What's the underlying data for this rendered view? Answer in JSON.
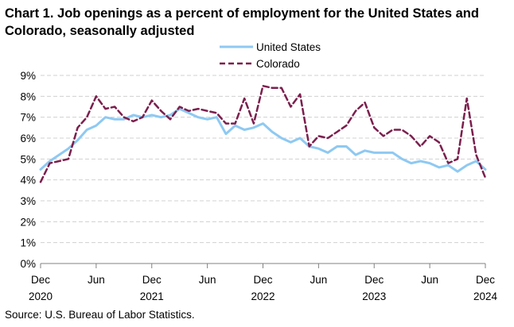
{
  "chart_data": {
    "type": "line",
    "title": "Chart 1. Job openings as a percent of employment for the United States and Colorado, seasonally adjusted",
    "source": "Source: U.S. Bureau of Labor Statistics.",
    "y_tick_labels": [
      "0%",
      "1%",
      "2%",
      "3%",
      "4%",
      "5%",
      "6%",
      "7%",
      "8%",
      "9%"
    ],
    "ylim": [
      0,
      9
    ],
    "x_tick_labels": [
      {
        "index": 0,
        "month": "Dec",
        "year": "2020"
      },
      {
        "index": 6,
        "month": "Jun",
        "year": ""
      },
      {
        "index": 12,
        "month": "Dec",
        "year": "2021"
      },
      {
        "index": 18,
        "month": "Jun",
        "year": ""
      },
      {
        "index": 24,
        "month": "Dec",
        "year": "2022"
      },
      {
        "index": 30,
        "month": "Jun",
        "year": ""
      },
      {
        "index": 36,
        "month": "Dec",
        "year": "2023"
      },
      {
        "index": 42,
        "month": "Jun",
        "year": ""
      },
      {
        "index": 48,
        "month": "Dec",
        "year": "2024"
      }
    ],
    "grid": true,
    "legend_position": "top-center",
    "series": [
      {
        "name": "United States",
        "color": "#8ec9f2",
        "style": "solid",
        "values": [
          4.5,
          4.9,
          5.2,
          5.5,
          5.9,
          6.4,
          6.6,
          7.0,
          6.9,
          6.9,
          7.1,
          7.0,
          7.1,
          7.0,
          7.1,
          7.4,
          7.2,
          7.0,
          6.9,
          7.0,
          6.2,
          6.6,
          6.4,
          6.5,
          6.7,
          6.3,
          6.0,
          5.8,
          6.0,
          5.6,
          5.5,
          5.3,
          5.6,
          5.6,
          5.2,
          5.4,
          5.3,
          5.3,
          5.3,
          5.0,
          4.8,
          4.9,
          4.8,
          4.6,
          4.7,
          4.4,
          4.7,
          4.9,
          4.5
        ]
      },
      {
        "name": "Colorado",
        "color": "#7b1f4d",
        "style": "dashed",
        "values": [
          3.9,
          4.8,
          4.9,
          5.0,
          6.5,
          7.0,
          8.0,
          7.4,
          7.5,
          7.0,
          6.8,
          7.0,
          7.8,
          7.3,
          6.9,
          7.5,
          7.3,
          7.4,
          7.3,
          7.2,
          6.7,
          6.7,
          7.9,
          6.7,
          8.5,
          8.4,
          8.4,
          7.5,
          8.1,
          5.6,
          6.1,
          6.0,
          6.3,
          6.6,
          7.3,
          7.7,
          6.5,
          6.1,
          6.4,
          6.4,
          6.1,
          5.6,
          6.1,
          5.8,
          4.8,
          5.0,
          7.9,
          5.2,
          4.1
        ]
      }
    ]
  }
}
